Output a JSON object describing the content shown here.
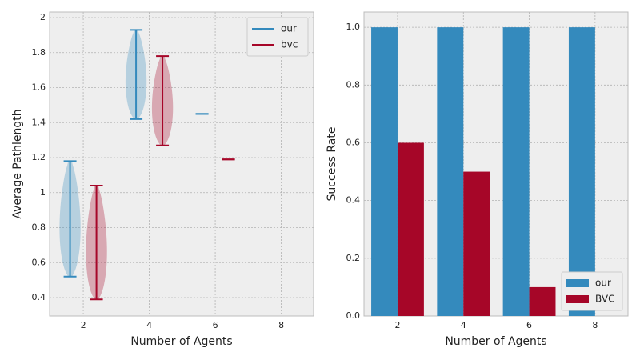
{
  "chart_data": [
    {
      "type": "violin",
      "xlabel": "Number of Agents",
      "ylabel": "Average Pathlength",
      "xlim": [
        0.98,
        8.98
      ],
      "xticks": [
        2,
        4,
        6,
        8
      ],
      "ylim": [
        0.295,
        2.032
      ],
      "yticks": [
        0.4,
        0.6,
        0.8,
        1.0,
        1.2,
        1.4,
        1.6,
        1.8,
        2.0
      ],
      "yticklabels_fmt": null,
      "grid": true,
      "legend": "upper right",
      "series": [
        {
          "name": "our",
          "color": "#348abd",
          "positions": [
            1.6,
            3.6,
            5.6
          ],
          "min": [
            0.52,
            1.42,
            1.45
          ],
          "max": [
            1.18,
            1.93,
            1.45
          ]
        },
        {
          "name": "bvc",
          "color": "#a60628",
          "positions": [
            2.4,
            4.4,
            6.4
          ],
          "min": [
            0.39,
            1.27,
            1.19
          ],
          "max": [
            1.04,
            1.78,
            1.19
          ]
        }
      ]
    },
    {
      "type": "bar",
      "xlabel": "Number of Agents",
      "ylabel": "Success Rate",
      "x": [
        2,
        4,
        6,
        8
      ],
      "xlim": [
        0.98,
        9.0
      ],
      "xticks": [
        2,
        4,
        6,
        8
      ],
      "ylim": [
        0,
        1.053
      ],
      "yticks": [
        {
          "value": 0,
          "label": "0.0"
        },
        0.2,
        0.4,
        0.6,
        0.8,
        {
          "value": 1,
          "label": "1.0"
        }
      ],
      "grid": true,
      "legend": "lower right",
      "series": [
        {
          "name": "our",
          "color": "#348abd",
          "values": [
            1,
            1,
            1,
            1
          ]
        },
        {
          "name": "BVC",
          "color": "#a60628",
          "values": [
            0.6,
            0.5,
            0.1,
            0
          ]
        }
      ]
    }
  ]
}
